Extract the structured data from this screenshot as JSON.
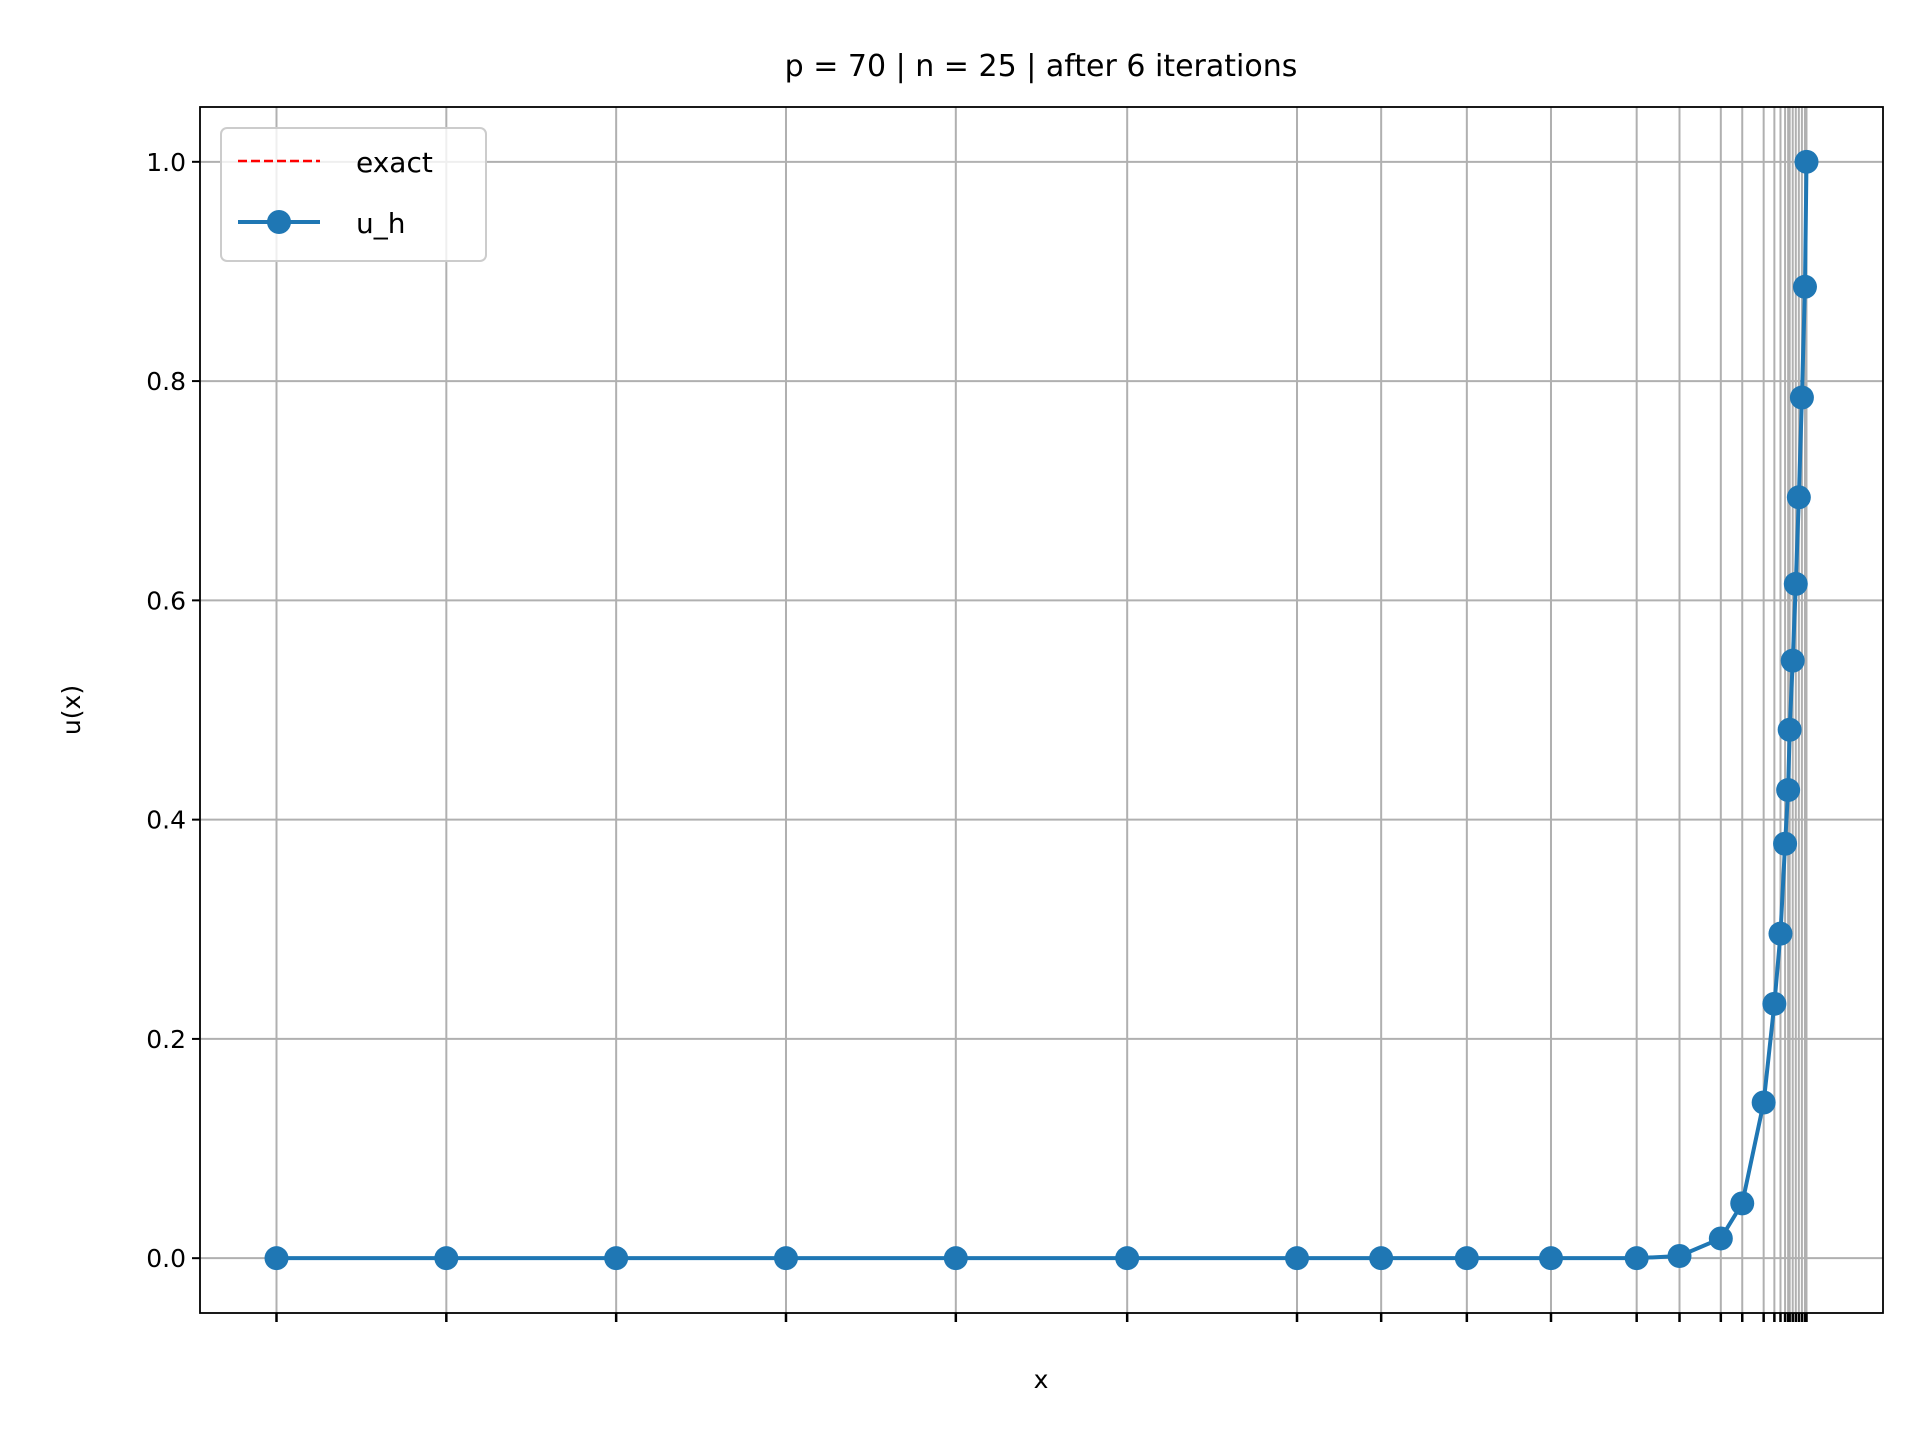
{
  "chart_data": {
    "type": "line",
    "title": "p = 70 | n = 25 | after 6 iterations",
    "xlabel": "x",
    "ylabel": "u(x)",
    "xlim": [
      -0.05,
      1.05
    ],
    "ylim": [
      -0.05,
      1.05
    ],
    "yticks": [
      "0.0",
      "0.2",
      "0.4",
      "0.6",
      "0.8",
      "1.0"
    ],
    "ytick_values": [
      0,
      0.2,
      0.4,
      0.6,
      0.8,
      1.0
    ],
    "grid": true,
    "legend_position": "top-left",
    "x": [
      0,
      0.111,
      0.222,
      0.333,
      0.444,
      0.556,
      0.667,
      0.722,
      0.778,
      0.833,
      0.889,
      0.917,
      0.944,
      0.958,
      0.972,
      0.979,
      0.983,
      0.986,
      0.988,
      0.989,
      0.991,
      0.993,
      0.995,
      0.997,
      0.999,
      1.0
    ],
    "series": [
      {
        "name": "exact",
        "color": "#ff0000",
        "style": "dashed",
        "values": [
          0,
          0,
          0,
          0,
          0,
          0,
          0,
          0,
          0,
          0,
          0,
          0.002,
          0.018,
          0.05,
          0.142,
          0.232,
          0.296,
          0.378,
          0.427,
          0.482,
          0.545,
          0.615,
          0.694,
          0.785,
          0.886,
          1.0
        ]
      },
      {
        "name": "u_h",
        "color": "#1f77b4",
        "style": "solid-marker",
        "values": [
          0,
          0,
          0,
          0,
          0,
          0,
          0,
          0,
          0,
          0,
          0,
          0.002,
          0.018,
          0.05,
          0.142,
          0.232,
          0.296,
          0.378,
          0.427,
          0.482,
          0.545,
          0.615,
          0.694,
          0.785,
          0.886,
          1.0
        ]
      }
    ]
  }
}
